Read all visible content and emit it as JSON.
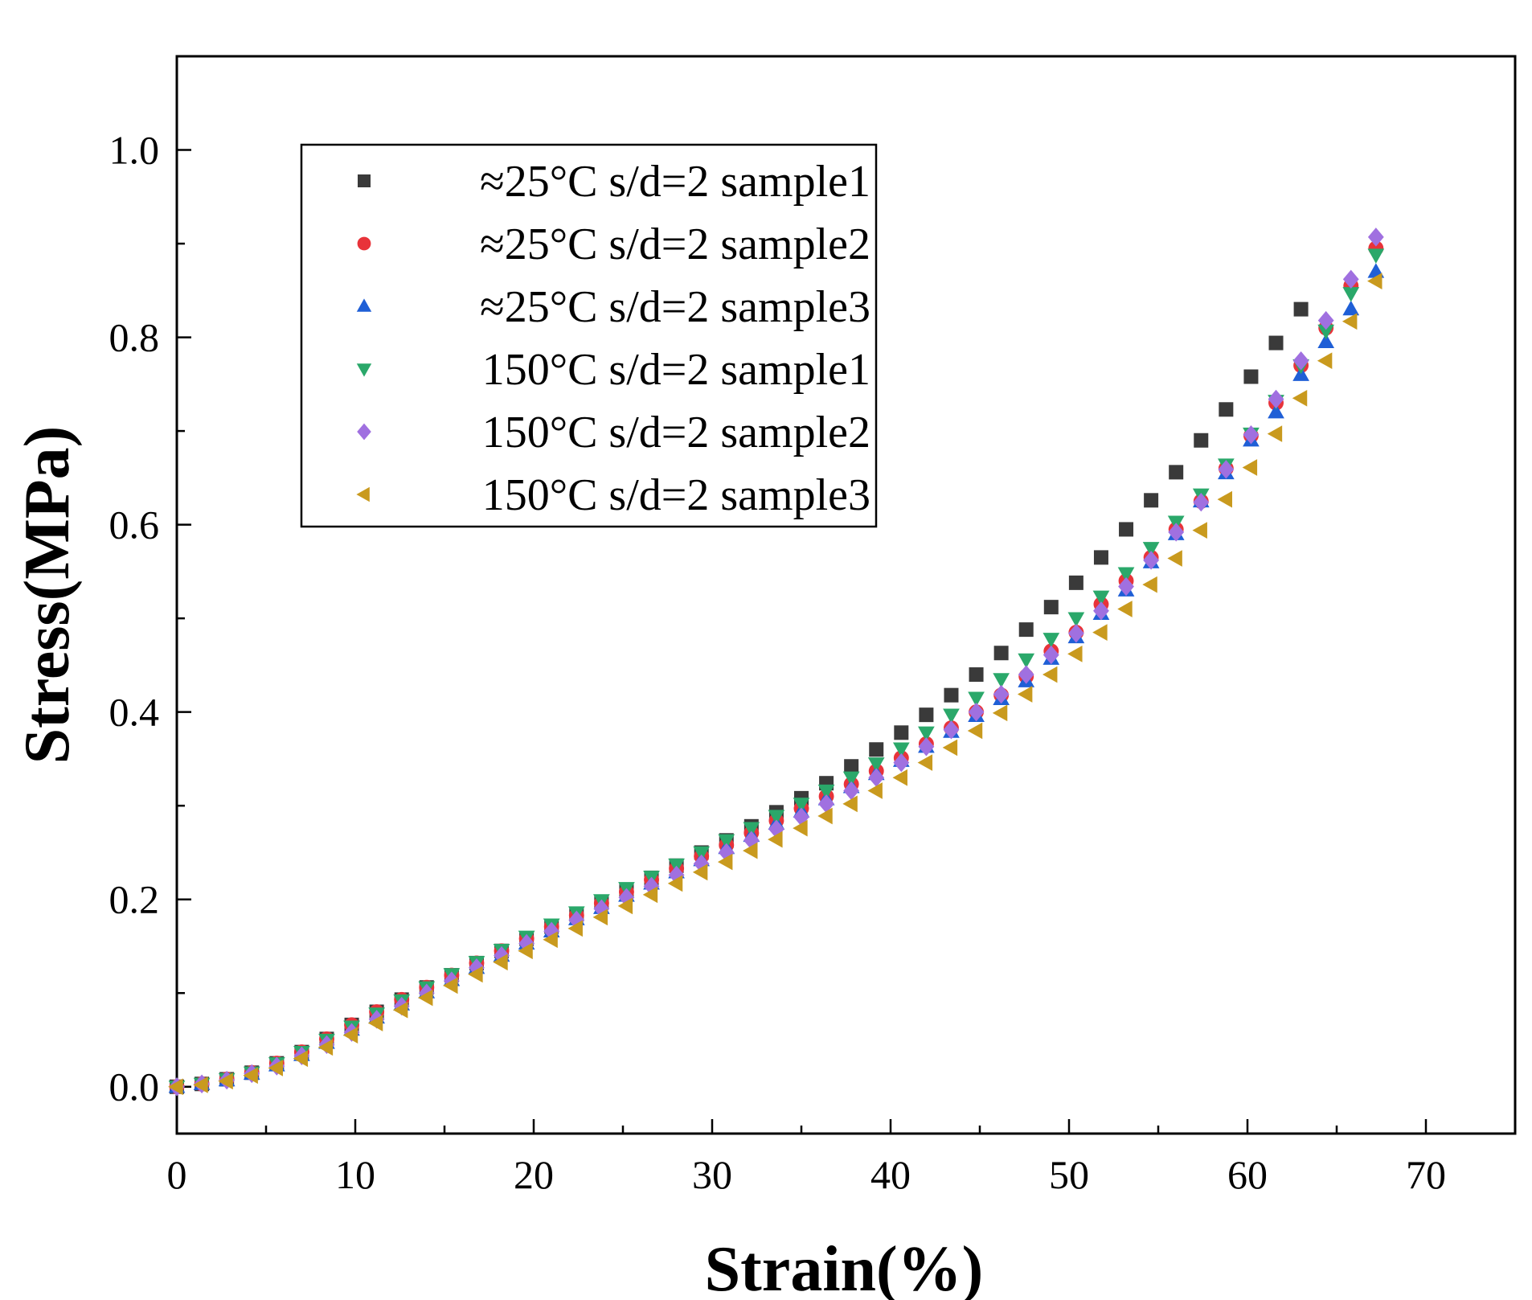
{
  "chart_data": {
    "type": "scatter",
    "xlabel": "Strain(%)",
    "ylabel": "Stress(MPa)",
    "xlim": [
      0,
      75
    ],
    "ylim": [
      -0.05,
      1.1
    ],
    "x_ticks": [
      0,
      10,
      20,
      30,
      40,
      50,
      60,
      70
    ],
    "y_ticks": [
      0.0,
      0.2,
      0.4,
      0.6,
      0.8,
      1.0
    ],
    "x_tick_labels": [
      "0",
      "10",
      "20",
      "30",
      "40",
      "50",
      "60",
      "70"
    ],
    "y_tick_labels": [
      "0.0",
      "0.2",
      "0.4",
      "0.6",
      "0.8",
      "1.0"
    ],
    "legend_position": "top-left",
    "series": [
      {
        "name": "≈25°C s/d=2 sample1",
        "marker": "square",
        "color": "#3a3a3a",
        "x": [
          0,
          1.4,
          2.8,
          4.2,
          5.6,
          7,
          8.4,
          9.8,
          11.2,
          12.6,
          14,
          15.4,
          16.8,
          18.2,
          19.6,
          21,
          22.4,
          23.8,
          25.2,
          26.6,
          28,
          29.4,
          30.8,
          32.2,
          33.6,
          35,
          36.4,
          37.8,
          39.2,
          40.6,
          42,
          43.4,
          44.8,
          46.2,
          47.6,
          49,
          50.4,
          51.8,
          53.2,
          54.6,
          56,
          57.4,
          58.8,
          60.2,
          61.6,
          63
        ],
        "values": [
          0,
          0.003,
          0.008,
          0.015,
          0.025,
          0.037,
          0.051,
          0.066,
          0.08,
          0.093,
          0.106,
          0.119,
          0.132,
          0.145,
          0.158,
          0.171,
          0.184,
          0.197,
          0.21,
          0.223,
          0.236,
          0.25,
          0.263,
          0.278,
          0.293,
          0.308,
          0.324,
          0.342,
          0.36,
          0.378,
          0.397,
          0.418,
          0.44,
          0.463,
          0.488,
          0.512,
          0.538,
          0.565,
          0.595,
          0.626,
          0.656,
          0.69,
          0.723,
          0.758,
          0.794,
          0.83
        ]
      },
      {
        "name": "≈25°C s/d=2 sample2",
        "marker": "circle",
        "color": "#e8333a",
        "x": [
          0,
          1.4,
          2.8,
          4.2,
          5.6,
          7,
          8.4,
          9.8,
          11.2,
          12.6,
          14,
          15.4,
          16.8,
          18.2,
          19.6,
          21,
          22.4,
          23.8,
          25.2,
          26.6,
          28,
          29.4,
          30.8,
          32.2,
          33.6,
          35,
          36.4,
          37.8,
          39.2,
          40.6,
          42,
          43.4,
          44.8,
          46.2,
          47.6,
          49,
          50.4,
          51.8,
          53.2,
          54.6,
          56,
          57.4,
          58.8,
          60.2,
          61.6,
          63,
          64.4,
          65.8,
          67.2
        ],
        "values": [
          0,
          0.003,
          0.008,
          0.015,
          0.025,
          0.037,
          0.051,
          0.066,
          0.08,
          0.093,
          0.106,
          0.119,
          0.132,
          0.145,
          0.158,
          0.171,
          0.183,
          0.196,
          0.208,
          0.221,
          0.233,
          0.246,
          0.258,
          0.271,
          0.284,
          0.297,
          0.31,
          0.323,
          0.337,
          0.351,
          0.366,
          0.383,
          0.4,
          0.418,
          0.438,
          0.465,
          0.485,
          0.515,
          0.54,
          0.565,
          0.595,
          0.625,
          0.66,
          0.695,
          0.73,
          0.77,
          0.81,
          0.855,
          0.895
        ]
      },
      {
        "name": "≈25°C s/d=2 sample3",
        "marker": "triangle-up",
        "color": "#1f5fd6",
        "x": [
          0,
          1.4,
          2.8,
          4.2,
          5.6,
          7,
          8.4,
          9.8,
          11.2,
          12.6,
          14,
          15.4,
          16.8,
          18.2,
          19.6,
          21,
          22.4,
          23.8,
          25.2,
          26.6,
          28,
          29.4,
          30.8,
          32.2,
          33.6,
          35,
          36.4,
          37.8,
          39.2,
          40.6,
          42,
          43.4,
          44.8,
          46.2,
          47.6,
          49,
          50.4,
          51.8,
          53.2,
          54.6,
          56,
          57.4,
          58.8,
          60.2,
          61.6,
          63,
          64.4,
          65.8,
          67.2
        ],
        "values": [
          0,
          0.003,
          0.007,
          0.014,
          0.023,
          0.034,
          0.047,
          0.061,
          0.074,
          0.088,
          0.101,
          0.114,
          0.127,
          0.14,
          0.153,
          0.166,
          0.179,
          0.191,
          0.204,
          0.217,
          0.229,
          0.242,
          0.255,
          0.268,
          0.281,
          0.294,
          0.307,
          0.32,
          0.334,
          0.348,
          0.363,
          0.379,
          0.396,
          0.414,
          0.433,
          0.457,
          0.48,
          0.505,
          0.53,
          0.56,
          0.59,
          0.625,
          0.655,
          0.69,
          0.72,
          0.76,
          0.795,
          0.83,
          0.87
        ]
      },
      {
        "name": "150°C s/d=2 sample1",
        "marker": "triangle-down",
        "color": "#2aa86a",
        "x": [
          0,
          1.4,
          2.8,
          4.2,
          5.6,
          7,
          8.4,
          9.8,
          11.2,
          12.6,
          14,
          15.4,
          16.8,
          18.2,
          19.6,
          21,
          22.4,
          23.8,
          25.2,
          26.6,
          28,
          29.4,
          30.8,
          32.2,
          33.6,
          35,
          36.4,
          37.8,
          39.2,
          40.6,
          42,
          43.4,
          44.8,
          46.2,
          47.6,
          49,
          50.4,
          51.8,
          53.2,
          54.6,
          56,
          57.4,
          58.8,
          60.2,
          61.6,
          63,
          64.4,
          65.8,
          67.2
        ],
        "values": [
          0,
          0.003,
          0.008,
          0.015,
          0.025,
          0.037,
          0.05,
          0.064,
          0.078,
          0.092,
          0.106,
          0.12,
          0.133,
          0.146,
          0.16,
          0.173,
          0.186,
          0.199,
          0.212,
          0.224,
          0.237,
          0.25,
          0.263,
          0.276,
          0.289,
          0.302,
          0.316,
          0.33,
          0.345,
          0.361,
          0.378,
          0.397,
          0.415,
          0.435,
          0.456,
          0.478,
          0.5,
          0.523,
          0.548,
          0.575,
          0.603,
          0.632,
          0.664,
          0.697,
          0.732,
          0.77,
          0.807,
          0.847,
          0.888
        ]
      },
      {
        "name": "150°C s/d=2 sample2",
        "marker": "diamond",
        "color": "#a070e0",
        "x": [
          0,
          1.4,
          2.8,
          4.2,
          5.6,
          7,
          8.4,
          9.8,
          11.2,
          12.6,
          14,
          15.4,
          16.8,
          18.2,
          19.6,
          21,
          22.4,
          23.8,
          25.2,
          26.6,
          28,
          29.4,
          30.8,
          32.2,
          33.6,
          35,
          36.4,
          37.8,
          39.2,
          40.6,
          42,
          43.4,
          44.8,
          46.2,
          47.6,
          49,
          50.4,
          51.8,
          53.2,
          54.6,
          56,
          57.4,
          58.8,
          60.2,
          61.6,
          63,
          64.4,
          65.8,
          67.2
        ],
        "values": [
          0,
          0.003,
          0.007,
          0.014,
          0.022,
          0.033,
          0.045,
          0.058,
          0.072,
          0.086,
          0.1,
          0.113,
          0.127,
          0.14,
          0.153,
          0.166,
          0.178,
          0.19,
          0.202,
          0.214,
          0.226,
          0.238,
          0.25,
          0.263,
          0.275,
          0.288,
          0.302,
          0.316,
          0.33,
          0.346,
          0.363,
          0.381,
          0.4,
          0.419,
          0.44,
          0.461,
          0.484,
          0.508,
          0.534,
          0.562,
          0.592,
          0.624,
          0.659,
          0.696,
          0.734,
          0.775,
          0.818,
          0.862,
          0.907
        ]
      },
      {
        "name": "150°C s/d=2 sample3",
        "marker": "triangle-left",
        "color": "#c99a1e",
        "x": [
          0,
          1.4,
          2.8,
          4.2,
          5.6,
          7,
          8.4,
          9.8,
          11.2,
          12.6,
          14,
          15.4,
          16.8,
          18.2,
          19.6,
          21,
          22.4,
          23.8,
          25.2,
          26.6,
          28,
          29.4,
          30.8,
          32.2,
          33.6,
          35,
          36.4,
          37.8,
          39.2,
          40.6,
          42,
          43.4,
          44.8,
          46.2,
          47.6,
          49,
          50.4,
          51.8,
          53.2,
          54.6,
          56,
          57.4,
          58.8,
          60.2,
          61.6,
          63,
          64.4,
          65.8,
          67.2
        ],
        "values": [
          0,
          0.002,
          0.006,
          0.012,
          0.02,
          0.03,
          0.042,
          0.055,
          0.068,
          0.082,
          0.095,
          0.108,
          0.12,
          0.133,
          0.145,
          0.157,
          0.169,
          0.181,
          0.193,
          0.205,
          0.217,
          0.229,
          0.24,
          0.252,
          0.264,
          0.276,
          0.289,
          0.302,
          0.316,
          0.33,
          0.346,
          0.362,
          0.38,
          0.399,
          0.419,
          0.44,
          0.462,
          0.485,
          0.51,
          0.536,
          0.564,
          0.594,
          0.627,
          0.661,
          0.697,
          0.735,
          0.775,
          0.817,
          0.86
        ]
      }
    ]
  }
}
